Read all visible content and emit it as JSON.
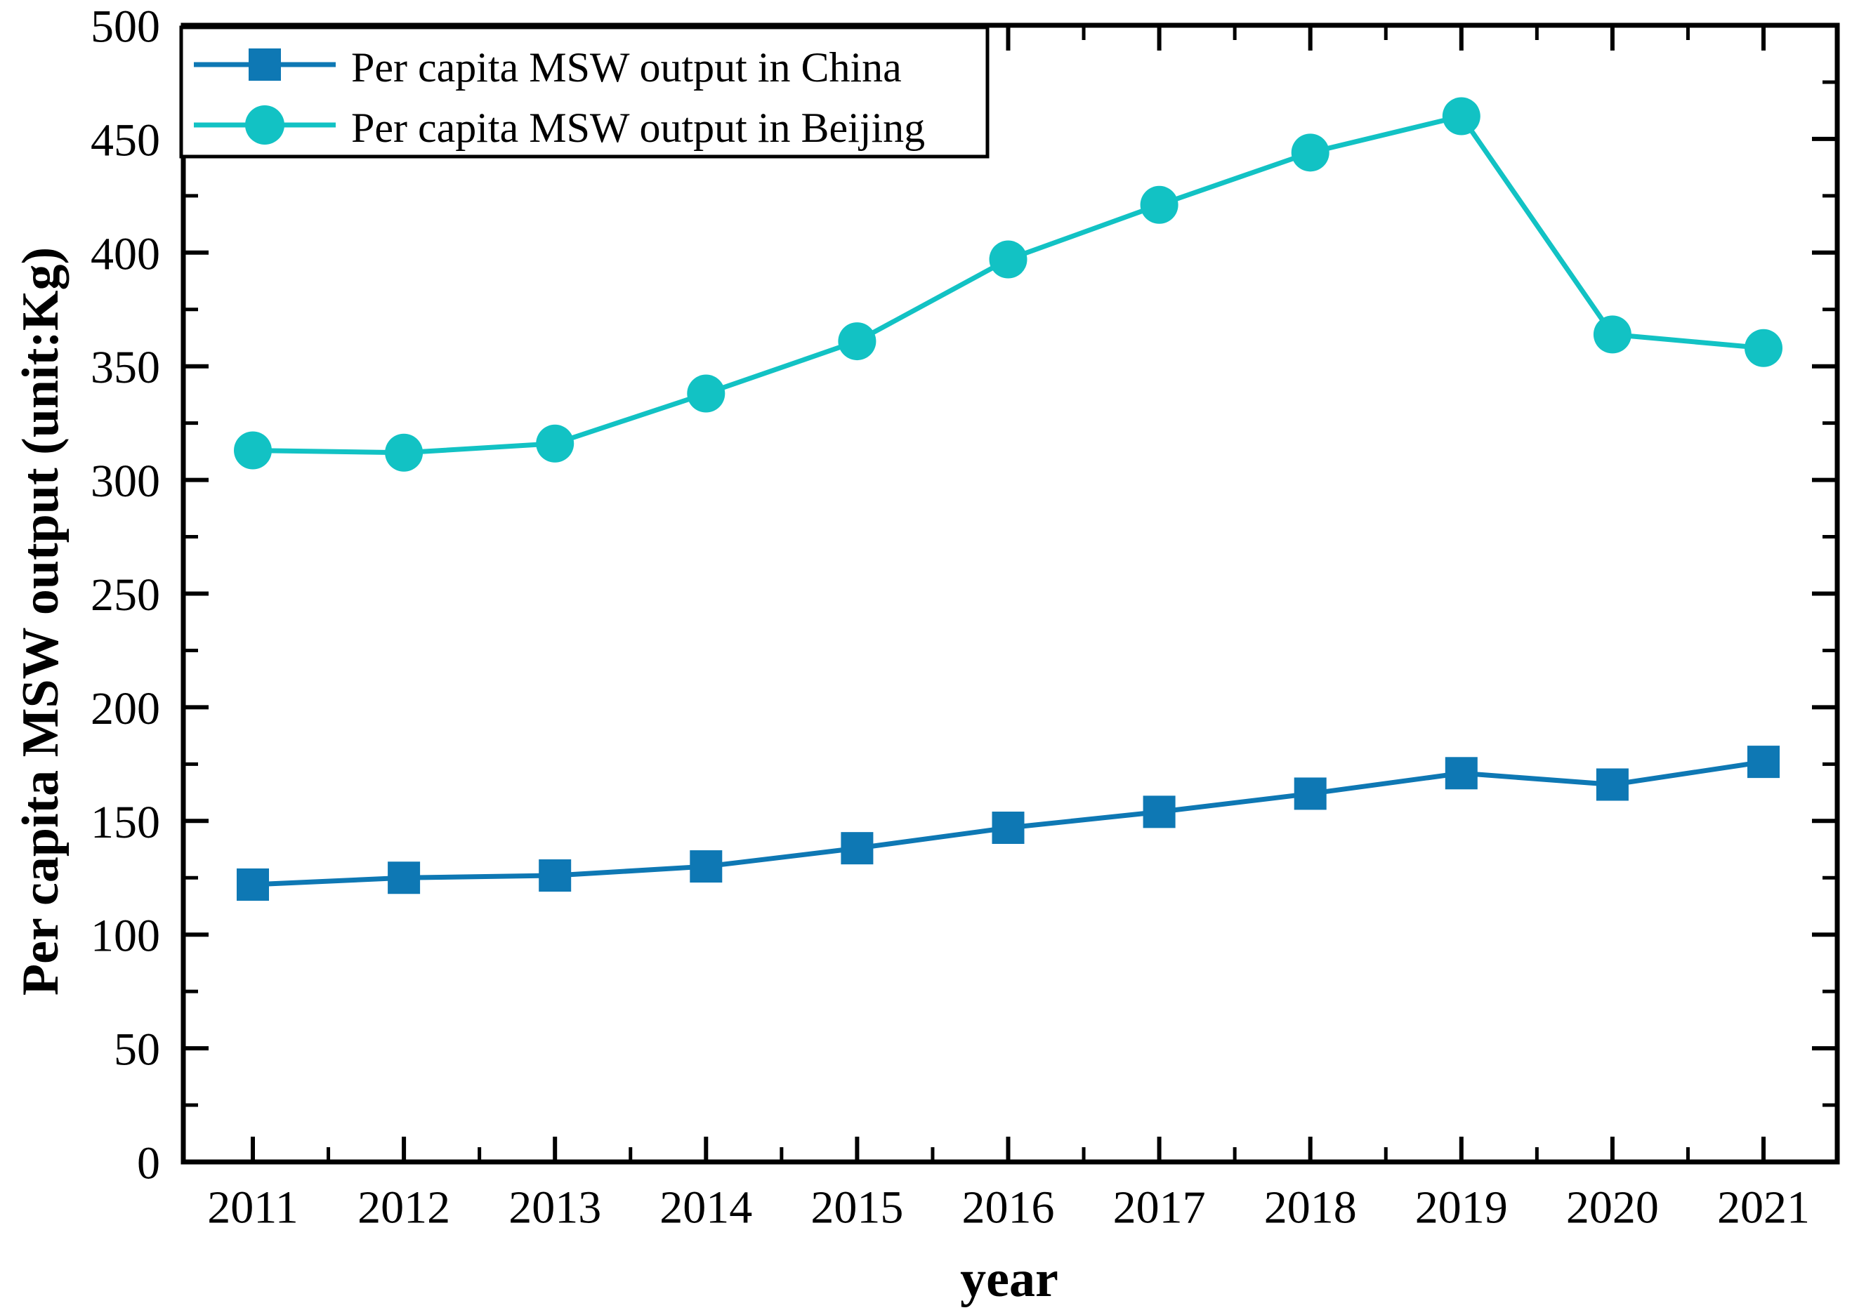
{
  "figure": {
    "background": "#FFFFFF",
    "axis_color": "#000000"
  },
  "chart_data": {
    "type": "line",
    "title": "",
    "xlabel": "year",
    "ylabel": "Per capita MSW output (unit:Kg)",
    "categories": [
      "2011",
      "2012",
      "2013",
      "2014",
      "2015",
      "2016",
      "2017",
      "2018",
      "2019",
      "2020",
      "2021"
    ],
    "series": [
      {
        "name": "Per capita MSW output in China",
        "marker": "square",
        "color": "#0E78B4",
        "values": [
          122,
          125,
          126,
          130,
          138,
          147,
          154,
          162,
          171,
          166,
          176
        ]
      },
      {
        "name": "Per capita MSW output in Beijing",
        "marker": "circle",
        "color": "#12C2C4",
        "values": [
          313,
          312,
          316,
          338,
          361,
          397,
          421,
          444,
          460,
          364,
          358
        ]
      }
    ],
    "ylim": [
      0,
      500
    ],
    "ytick_major_interval": 50,
    "ytick_minor_interval": 25,
    "xtick_minor": "between-years",
    "grid": false,
    "tick_direction": "in",
    "legend_position": "top-left"
  }
}
